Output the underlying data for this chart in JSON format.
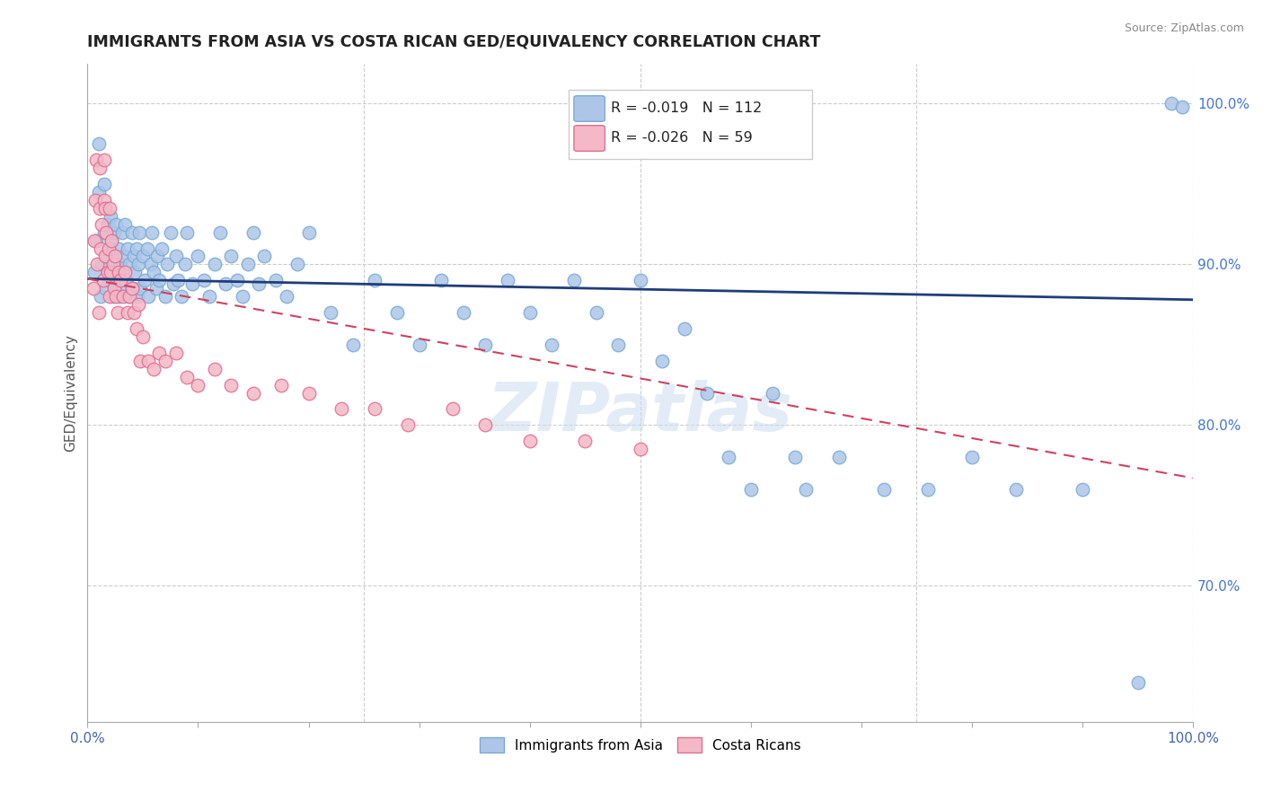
{
  "title": "IMMIGRANTS FROM ASIA VS COSTA RICAN GED/EQUIVALENCY CORRELATION CHART",
  "source": "Source: ZipAtlas.com",
  "ylabel": "GED/Equivalency",
  "ytick_labels": [
    "70.0%",
    "80.0%",
    "90.0%",
    "100.0%"
  ],
  "ytick_values": [
    0.7,
    0.8,
    0.9,
    1.0
  ],
  "xlim": [
    0.0,
    1.0
  ],
  "ylim": [
    0.615,
    1.025
  ],
  "legend_blue_label": "Immigrants from Asia",
  "legend_pink_label": "Costa Ricans",
  "legend_R_blue": "R = -0.019",
  "legend_N_blue": "N = 112",
  "legend_R_pink": "R = -0.026",
  "legend_N_pink": "N = 59",
  "blue_color": "#adc6e8",
  "blue_edge_color": "#7aaad4",
  "pink_color": "#f4b8c8",
  "pink_edge_color": "#e07090",
  "blue_line_color": "#1f3d7a",
  "pink_line_color": "#d04060",
  "watermark": "ZIPatlas",
  "grid_color": "#cccccc",
  "blue_scatter_x": [
    0.006,
    0.008,
    0.01,
    0.01,
    0.012,
    0.013,
    0.015,
    0.015,
    0.016,
    0.017,
    0.018,
    0.019,
    0.02,
    0.021,
    0.022,
    0.022,
    0.023,
    0.024,
    0.024,
    0.025,
    0.025,
    0.026,
    0.027,
    0.028,
    0.029,
    0.03,
    0.031,
    0.032,
    0.033,
    0.034,
    0.035,
    0.036,
    0.037,
    0.038,
    0.04,
    0.041,
    0.042,
    0.043,
    0.044,
    0.045,
    0.046,
    0.047,
    0.048,
    0.05,
    0.052,
    0.054,
    0.055,
    0.057,
    0.058,
    0.06,
    0.062,
    0.063,
    0.065,
    0.067,
    0.07,
    0.072,
    0.075,
    0.078,
    0.08,
    0.082,
    0.085,
    0.088,
    0.09,
    0.095,
    0.1,
    0.105,
    0.11,
    0.115,
    0.12,
    0.125,
    0.13,
    0.135,
    0.14,
    0.145,
    0.15,
    0.155,
    0.16,
    0.17,
    0.18,
    0.19,
    0.2,
    0.22,
    0.24,
    0.26,
    0.28,
    0.3,
    0.32,
    0.34,
    0.36,
    0.38,
    0.4,
    0.42,
    0.44,
    0.46,
    0.48,
    0.5,
    0.52,
    0.54,
    0.56,
    0.58,
    0.6,
    0.62,
    0.64,
    0.65,
    0.68,
    0.72,
    0.76,
    0.8,
    0.84,
    0.9,
    0.95,
    0.98,
    0.99
  ],
  "blue_scatter_y": [
    0.895,
    0.915,
    0.945,
    0.975,
    0.88,
    0.9,
    0.92,
    0.95,
    0.885,
    0.905,
    0.925,
    0.89,
    0.91,
    0.93,
    0.895,
    0.915,
    0.88,
    0.9,
    0.92,
    0.885,
    0.905,
    0.925,
    0.89,
    0.91,
    0.88,
    0.9,
    0.92,
    0.885,
    0.905,
    0.925,
    0.89,
    0.91,
    0.88,
    0.9,
    0.92,
    0.885,
    0.905,
    0.895,
    0.91,
    0.88,
    0.9,
    0.92,
    0.885,
    0.905,
    0.89,
    0.91,
    0.88,
    0.9,
    0.92,
    0.895,
    0.885,
    0.905,
    0.89,
    0.91,
    0.88,
    0.9,
    0.92,
    0.888,
    0.905,
    0.89,
    0.88,
    0.9,
    0.92,
    0.888,
    0.905,
    0.89,
    0.88,
    0.9,
    0.92,
    0.888,
    0.905,
    0.89,
    0.88,
    0.9,
    0.92,
    0.888,
    0.905,
    0.89,
    0.88,
    0.9,
    0.92,
    0.87,
    0.85,
    0.89,
    0.87,
    0.85,
    0.89,
    0.87,
    0.85,
    0.89,
    0.87,
    0.85,
    0.89,
    0.87,
    0.85,
    0.89,
    0.84,
    0.86,
    0.82,
    0.78,
    0.76,
    0.82,
    0.78,
    0.76,
    0.78,
    0.76,
    0.76,
    0.78,
    0.76,
    0.76,
    0.64,
    1.0,
    0.998
  ],
  "pink_scatter_x": [
    0.005,
    0.006,
    0.007,
    0.008,
    0.009,
    0.01,
    0.011,
    0.011,
    0.012,
    0.013,
    0.014,
    0.015,
    0.015,
    0.016,
    0.016,
    0.017,
    0.018,
    0.019,
    0.02,
    0.02,
    0.021,
    0.022,
    0.023,
    0.024,
    0.025,
    0.026,
    0.027,
    0.028,
    0.03,
    0.032,
    0.034,
    0.036,
    0.038,
    0.04,
    0.042,
    0.044,
    0.046,
    0.048,
    0.05,
    0.055,
    0.06,
    0.065,
    0.07,
    0.08,
    0.09,
    0.1,
    0.115,
    0.13,
    0.15,
    0.175,
    0.2,
    0.23,
    0.26,
    0.29,
    0.33,
    0.36,
    0.4,
    0.45,
    0.5
  ],
  "pink_scatter_y": [
    0.885,
    0.915,
    0.94,
    0.965,
    0.9,
    0.87,
    0.935,
    0.96,
    0.91,
    0.925,
    0.89,
    0.94,
    0.965,
    0.905,
    0.935,
    0.92,
    0.895,
    0.91,
    0.88,
    0.935,
    0.895,
    0.915,
    0.9,
    0.885,
    0.905,
    0.88,
    0.87,
    0.895,
    0.89,
    0.88,
    0.895,
    0.87,
    0.88,
    0.885,
    0.87,
    0.86,
    0.875,
    0.84,
    0.855,
    0.84,
    0.835,
    0.845,
    0.84,
    0.845,
    0.83,
    0.825,
    0.835,
    0.825,
    0.82,
    0.825,
    0.82,
    0.81,
    0.81,
    0.8,
    0.81,
    0.8,
    0.79,
    0.79,
    0.785
  ],
  "blue_trend_x0": 0.0,
  "blue_trend_x1": 1.0,
  "blue_trend_y0": 0.891,
  "blue_trend_y1": 0.878,
  "pink_trend_x0": 0.0,
  "pink_trend_x1": 1.0,
  "pink_trend_y0": 0.891,
  "pink_trend_y1": 0.767
}
